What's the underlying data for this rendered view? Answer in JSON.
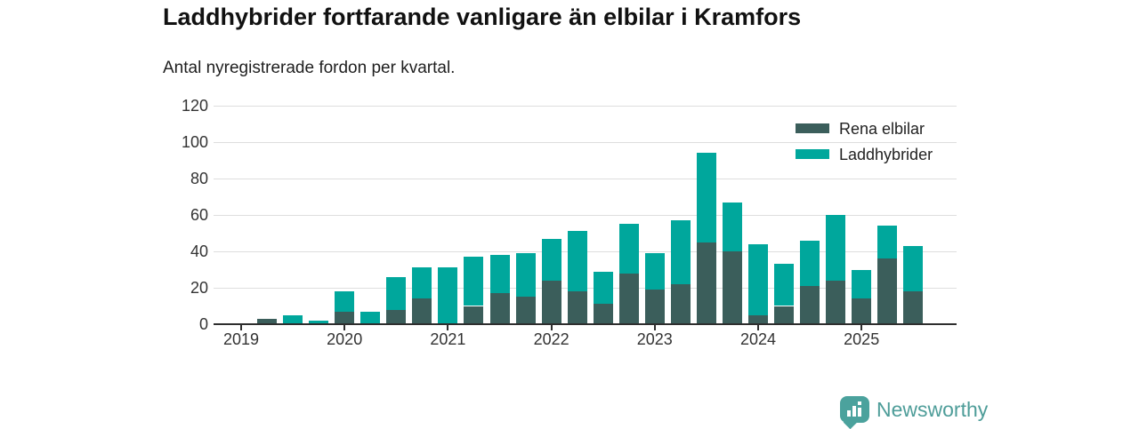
{
  "title": "Laddhybrider fortfarande vanligare än elbilar i Kramfors",
  "subtitle": "Antal nyregistrerade fordon per kvartal.",
  "colors": {
    "elbilar": "#3b5e5b",
    "laddhybrider": "#00a79c",
    "gridline": "#dedede",
    "axis": "#2e2e2e",
    "brand": "#4ba29d"
  },
  "legend": {
    "items": [
      {
        "label": "Rena elbilar",
        "color": "#3b5e5b"
      },
      {
        "label": "Laddhybrider",
        "color": "#00a79c"
      }
    ]
  },
  "chart_data": {
    "type": "bar",
    "stacked": true,
    "title": "Laddhybrider fortfarande vanligare än elbilar i Kramfors",
    "subtitle": "Antal nyregistrerade fordon per kvartal.",
    "x": [
      "2019 Q1",
      "2019 Q2",
      "2019 Q3",
      "2019 Q4",
      "2020 Q1",
      "2020 Q2",
      "2020 Q3",
      "2020 Q4",
      "2021 Q1",
      "2021 Q2",
      "2021 Q3",
      "2021 Q4",
      "2022 Q1",
      "2022 Q2",
      "2022 Q3",
      "2022 Q4",
      "2023 Q1",
      "2023 Q2",
      "2023 Q3",
      "2023 Q4",
      "2024 Q1",
      "2024 Q2",
      "2024 Q3",
      "2024 Q4",
      "2025 Q1",
      "2025 Q2",
      "2025 Q3"
    ],
    "series": [
      {
        "name": "Rena elbilar",
        "color": "#3b5e5b",
        "values": [
          0,
          3,
          0,
          0,
          7,
          0,
          8,
          14,
          0,
          10,
          17,
          15,
          24,
          18,
          11,
          28,
          19,
          22,
          45,
          40,
          5,
          10,
          21,
          24,
          14,
          36,
          18
        ]
      },
      {
        "name": "Laddhybrider",
        "color": "#00a79c",
        "values": [
          0,
          0,
          5,
          2,
          11,
          7,
          18,
          17,
          31,
          27,
          21,
          24,
          23,
          33,
          18,
          27,
          20,
          35,
          49,
          27,
          39,
          23,
          25,
          36,
          16,
          18,
          25
        ]
      }
    ],
    "year_ticks": [
      {
        "label": "2019",
        "quarter_index": 0
      },
      {
        "label": "2020",
        "quarter_index": 4
      },
      {
        "label": "2021",
        "quarter_index": 8
      },
      {
        "label": "2022",
        "quarter_index": 12
      },
      {
        "label": "2023",
        "quarter_index": 16
      },
      {
        "label": "2024",
        "quarter_index": 20
      },
      {
        "label": "2025",
        "quarter_index": 24
      }
    ],
    "ylim": [
      0,
      120
    ],
    "yticks": [
      0,
      20,
      40,
      60,
      80,
      100,
      120
    ],
    "grid": true,
    "legend_position": "top-right"
  },
  "footer": {
    "brand": "Newsworthy",
    "logo_icon": "bar-chart-badge-icon"
  }
}
